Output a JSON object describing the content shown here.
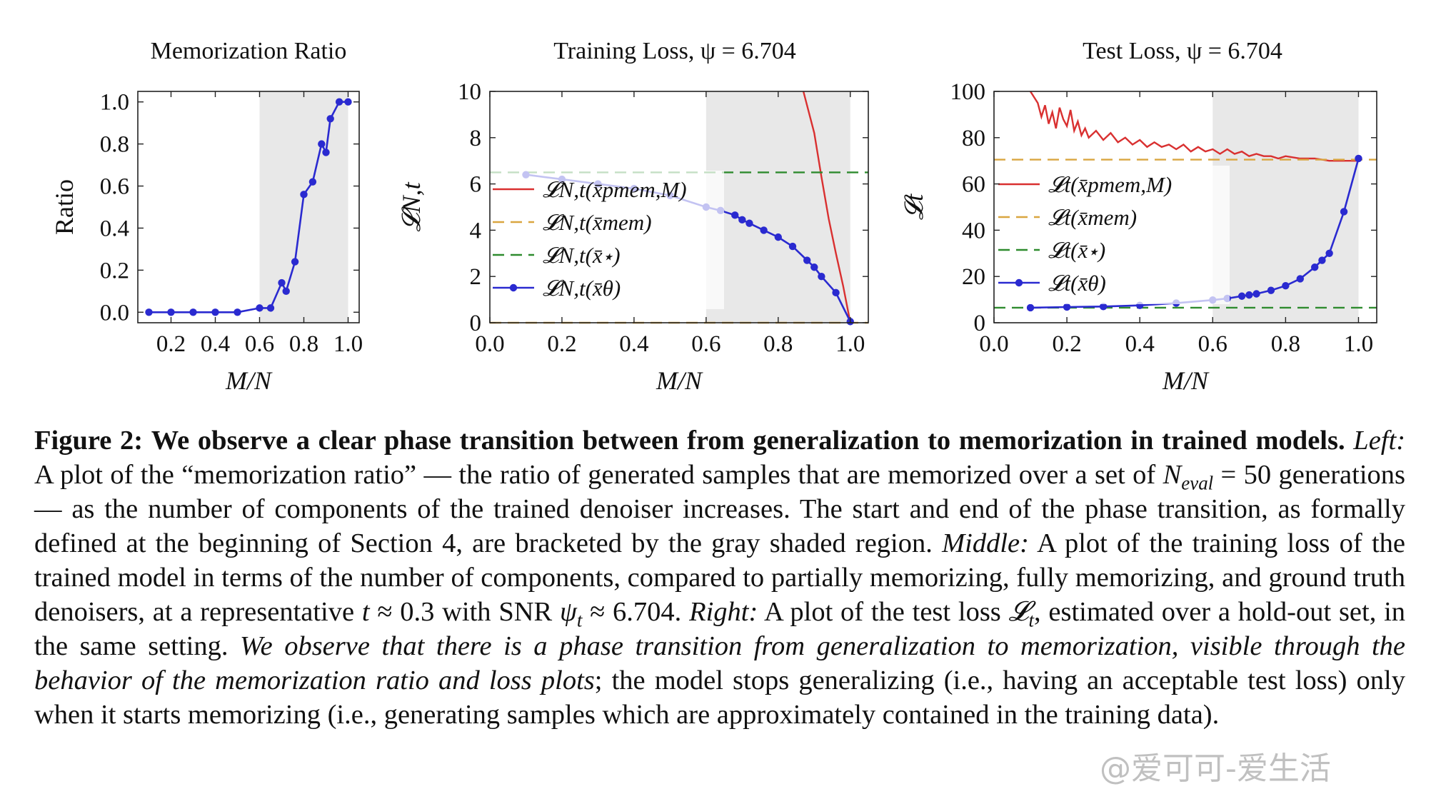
{
  "chart_data": [
    {
      "type": "line",
      "title": "Memorization Ratio",
      "xlabel": "M/N",
      "ylabel": "Ratio",
      "xlim": [
        0.05,
        1.05
      ],
      "ylim": [
        -0.05,
        1.05
      ],
      "xticks": [
        0.2,
        0.4,
        0.6,
        0.8,
        1.0
      ],
      "xtick_labels": [
        "0.2",
        "0.4",
        "0.6",
        "0.8",
        "1.0"
      ],
      "yticks": [
        0.0,
        0.2,
        0.4,
        0.6,
        0.8,
        1.0
      ],
      "ytick_labels": [
        "0.0",
        "0.2",
        "0.4",
        "0.6",
        "0.8",
        "1.0"
      ],
      "shaded_region": [
        0.6,
        1.0
      ],
      "legend": [],
      "series": [
        {
          "color": "#2a2ad0",
          "marker": true,
          "style": "solid",
          "x": [
            0.1,
            0.2,
            0.3,
            0.4,
            0.5,
            0.6,
            0.65,
            0.7,
            0.72,
            0.76,
            0.8,
            0.84,
            0.88,
            0.9,
            0.92,
            0.96,
            1.0
          ],
          "y": [
            0.0,
            0.0,
            0.0,
            0.0,
            0.0,
            0.02,
            0.02,
            0.14,
            0.1,
            0.24,
            0.56,
            0.62,
            0.8,
            0.76,
            0.92,
            1.0,
            1.0
          ]
        }
      ]
    },
    {
      "type": "line",
      "title": "Training Loss, ψ = 6.704",
      "xlabel": "M/N",
      "ylabel": "𝓛N,t",
      "xlim": [
        0.0,
        1.05
      ],
      "ylim": [
        0,
        10
      ],
      "xticks": [
        0.0,
        0.2,
        0.4,
        0.6,
        0.8,
        1.0
      ],
      "xtick_labels": [
        "0.0",
        "0.2",
        "0.4",
        "0.6",
        "0.8",
        "1.0"
      ],
      "yticks": [
        0,
        2,
        4,
        6,
        8,
        10
      ],
      "ytick_labels": [
        "0",
        "2",
        "4",
        "6",
        "8",
        "10"
      ],
      "shaded_region": [
        0.6,
        1.0
      ],
      "legend": [
        "𝓛N,t(x̄pmem,M)",
        "𝓛N,t(x̄mem)",
        "𝓛N,t(x̄⋆)",
        "𝓛N,t(x̄θ)"
      ],
      "series": [
        {
          "name": "𝓛N,t(x̄pmem,M)",
          "color": "#d93030",
          "marker": false,
          "style": "solid",
          "x": [
            0.87,
            0.9,
            0.92,
            0.94,
            0.96,
            0.98,
            1.0
          ],
          "y": [
            10.0,
            8.2,
            6.3,
            4.5,
            3.0,
            1.6,
            0.0
          ]
        },
        {
          "name": "𝓛N,t(x̄mem)",
          "color": "#d9a640",
          "marker": false,
          "style": "dashed",
          "x": [
            0.0,
            1.05
          ],
          "y": [
            0.0,
            0.0
          ]
        },
        {
          "name": "𝓛N,t(x̄⋆)",
          "color": "#2e8b2e",
          "marker": false,
          "style": "dashed",
          "x": [
            0.0,
            1.05
          ],
          "y": [
            6.5,
            6.5
          ]
        },
        {
          "name": "𝓛N,t(x̄θ)",
          "color": "#2a2ad0",
          "marker": true,
          "style": "solid",
          "x": [
            0.1,
            0.2,
            0.3,
            0.4,
            0.5,
            0.6,
            0.64,
            0.68,
            0.7,
            0.72,
            0.76,
            0.8,
            0.84,
            0.88,
            0.9,
            0.92,
            0.96,
            1.0
          ],
          "y": [
            6.4,
            6.2,
            6.0,
            5.8,
            5.5,
            5.0,
            4.85,
            4.65,
            4.45,
            4.3,
            4.0,
            3.7,
            3.3,
            2.7,
            2.4,
            2.0,
            1.3,
            0.05
          ]
        }
      ]
    },
    {
      "type": "line",
      "title": "Test Loss, ψ = 6.704",
      "xlabel": "M/N",
      "ylabel": "𝓛t",
      "xlim": [
        0.0,
        1.05
      ],
      "ylim": [
        0,
        100
      ],
      "xticks": [
        0.0,
        0.2,
        0.4,
        0.6,
        0.8,
        1.0
      ],
      "xtick_labels": [
        "0.0",
        "0.2",
        "0.4",
        "0.6",
        "0.8",
        "1.0"
      ],
      "yticks": [
        0,
        20,
        40,
        60,
        80,
        100
      ],
      "ytick_labels": [
        "0",
        "20",
        "40",
        "60",
        "80",
        "100"
      ],
      "shaded_region": [
        0.6,
        1.0
      ],
      "legend": [
        "𝓛t(x̄pmem,M)",
        "𝓛t(x̄mem)",
        "𝓛t(x̄⋆)",
        "𝓛t(x̄θ)"
      ],
      "series": [
        {
          "name": "𝓛t(x̄pmem,M)",
          "color": "#d93030",
          "marker": false,
          "style": "solid",
          "x": [
            0.1,
            0.12,
            0.13,
            0.14,
            0.15,
            0.16,
            0.17,
            0.18,
            0.19,
            0.2,
            0.21,
            0.22,
            0.23,
            0.24,
            0.25,
            0.26,
            0.28,
            0.3,
            0.32,
            0.34,
            0.36,
            0.38,
            0.4,
            0.42,
            0.44,
            0.46,
            0.48,
            0.5,
            0.52,
            0.54,
            0.56,
            0.58,
            0.6,
            0.62,
            0.64,
            0.66,
            0.68,
            0.7,
            0.72,
            0.74,
            0.76,
            0.78,
            0.8,
            0.84,
            0.88,
            0.92,
            0.96,
            1.0
          ],
          "y": [
            100,
            95,
            89,
            94,
            86,
            91,
            84,
            93,
            88,
            85,
            92,
            83,
            87,
            81,
            84,
            80,
            83,
            79,
            82,
            78,
            80,
            77,
            79,
            76,
            78,
            76,
            77,
            75,
            77,
            74,
            76,
            74,
            75,
            73,
            75,
            73,
            74,
            72,
            73,
            72,
            72,
            71,
            72,
            71,
            71,
            70,
            70,
            70
          ]
        },
        {
          "name": "𝓛t(x̄mem)",
          "color": "#d9a640",
          "marker": false,
          "style": "dashed",
          "x": [
            0.0,
            1.05
          ],
          "y": [
            70.5,
            70.5
          ]
        },
        {
          "name": "𝓛t(x̄⋆)",
          "color": "#2e8b2e",
          "marker": false,
          "style": "dashed",
          "x": [
            0.0,
            1.05
          ],
          "y": [
            6.5,
            6.5
          ]
        },
        {
          "name": "𝓛t(x̄θ)",
          "color": "#2a2ad0",
          "marker": true,
          "style": "solid",
          "x": [
            0.1,
            0.2,
            0.3,
            0.4,
            0.5,
            0.6,
            0.64,
            0.68,
            0.7,
            0.72,
            0.76,
            0.8,
            0.84,
            0.88,
            0.9,
            0.92,
            0.96,
            1.0
          ],
          "y": [
            6.5,
            6.8,
            7.0,
            7.5,
            8.5,
            9.8,
            10.5,
            11.5,
            12,
            12.5,
            14,
            16,
            19,
            24,
            27,
            30,
            48,
            71
          ]
        }
      ]
    }
  ],
  "caption": {
    "figure_label": "Figure 2:",
    "bold_title": "We observe a clear phase transition between from generalization to memorization in trained models.",
    "left_label": "Left:",
    "left_text_1": "A plot of the “memorization ratio” — the ratio of generated samples that are memorized over a set of",
    "left_math_N": "N",
    "left_math_sub": "eval",
    "left_math_eq": "= 50",
    "left_text_2": "generations — as the number of components of the trained denoiser increases. The start and end of the phase transition, as formally defined at the beginning of Section 4, are bracketed by the gray shaded region.",
    "middle_label": "Middle:",
    "middle_text_1": "A plot of the training loss of the trained model in terms of the number of components, compared to partially memorizing, fully memorizing, and ground truth denoisers, at a representative",
    "middle_math_t": "t",
    "middle_math_approx": "≈ 0.3",
    "middle_text_2": "with SNR",
    "middle_math_psi": "ψ",
    "middle_math_psi_sub": "t",
    "middle_math_psi_val": "≈ 6.704.",
    "right_label": "Right:",
    "right_text_1": "A plot of the test loss",
    "right_math_L": "𝓛",
    "right_math_L_sub": "t",
    "right_text_2": ", estimated over a hold-out set, in the same setting.",
    "italic_text": "We observe that there is a phase transition from generalization to memorization, visible through the behavior of the memorization ratio and loss plots",
    "final_text": "; the model stops generalizing (i.e., having an acceptable test loss) only when it starts memorizing (i.e., generating samples which are approximately contained in the training data)."
  },
  "watermark": "@爱可可-爱生活"
}
